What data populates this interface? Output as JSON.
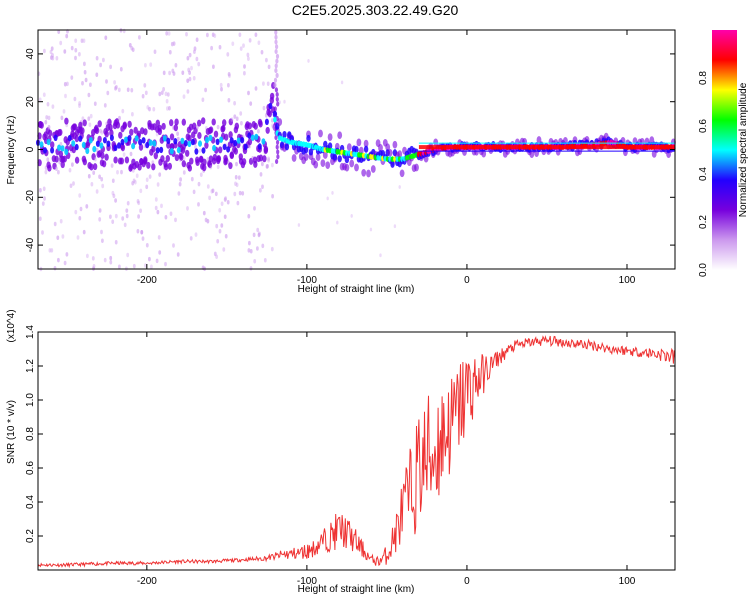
{
  "figure": {
    "title": "C2E5.2025.303.22.49.G20"
  },
  "chart_data": [
    {
      "type": "heatmap",
      "name": "spectrogram",
      "xlabel": "Height of straight line (km)",
      "ylabel": "Frequency (Hz)",
      "xlim": [
        -268,
        130
      ],
      "ylim": [
        -50,
        50
      ],
      "xticks": [
        -200,
        -100,
        0,
        100
      ],
      "yticks": [
        -40,
        -20,
        0,
        20,
        40
      ],
      "grid": false,
      "colorbar": {
        "label": "Normalized spectral amplitude",
        "range": [
          0,
          1
        ],
        "ticks": [
          "0.0",
          "0.2",
          "0.4",
          "0.6",
          "0.8"
        ],
        "colormap": [
          "#ffffff",
          "#cc99ee",
          "#7700dd",
          "#2200ff",
          "#00ffff",
          "#00ff00",
          "#ffff00",
          "#ff0000",
          "#ff00aa"
        ]
      },
      "ridge_frequency": {
        "height_km": [
          -268,
          -200,
          -140,
          -126,
          -122,
          -118,
          -110,
          -100,
          -90,
          -80,
          -70,
          -60,
          -50,
          -40,
          -30,
          -20,
          -10,
          0,
          20,
          60,
          80,
          90,
          100,
          130
        ],
        "frequency_hz": [
          2,
          2,
          2,
          5,
          20,
          5,
          3,
          2,
          0,
          -1,
          -2,
          -3,
          -4,
          -4,
          -2,
          0,
          1,
          1,
          1,
          1,
          2,
          3,
          1,
          1
        ]
      },
      "strong_band": {
        "from_km": -30,
        "to_km": 130,
        "frequency_hz": 1
      }
    },
    {
      "type": "line",
      "name": "snr",
      "xlabel": "Height of straight line (km)",
      "ylabel": "SNR (10 * v/v)",
      "scale_label": "(x10^4)",
      "xlim": [
        -268,
        130
      ],
      "ylim": [
        0,
        1.4
      ],
      "xticks": [
        -200,
        -100,
        0,
        100
      ],
      "yticks": [
        0.2,
        0.4,
        0.6,
        0.8,
        1.0,
        1.2,
        1.4
      ],
      "grid": false,
      "series": [
        {
          "color": "#ee3333",
          "x": [
            -268,
            -250,
            -220,
            -200,
            -180,
            -160,
            -140,
            -125,
            -115,
            -105,
            -100,
            -95,
            -90,
            -85,
            -80,
            -75,
            -70,
            -65,
            -60,
            -55,
            -50,
            -45,
            -40,
            -35,
            -30,
            -25,
            -20,
            -15,
            -10,
            -5,
            0,
            5,
            10,
            15,
            20,
            30,
            40,
            50,
            60,
            70,
            80,
            90,
            100,
            110,
            120,
            130
          ],
          "y": [
            0.03,
            0.03,
            0.04,
            0.04,
            0.05,
            0.05,
            0.06,
            0.07,
            0.09,
            0.1,
            0.11,
            0.13,
            0.17,
            0.2,
            0.24,
            0.22,
            0.17,
            0.12,
            0.06,
            0.05,
            0.09,
            0.2,
            0.35,
            0.45,
            0.6,
            0.65,
            0.7,
            0.8,
            0.85,
            0.95,
            1.05,
            1.1,
            1.15,
            1.2,
            1.25,
            1.32,
            1.34,
            1.35,
            1.34,
            1.33,
            1.32,
            1.3,
            1.29,
            1.28,
            1.27,
            1.25
          ],
          "noise_amplitude": [
            0.01,
            0.01,
            0.01,
            0.01,
            0.01,
            0.01,
            0.01,
            0.015,
            0.03,
            0.04,
            0.05,
            0.05,
            0.07,
            0.09,
            0.12,
            0.1,
            0.08,
            0.05,
            0.03,
            0.03,
            0.06,
            0.12,
            0.2,
            0.3,
            0.35,
            0.4,
            0.4,
            0.35,
            0.3,
            0.3,
            0.28,
            0.2,
            0.12,
            0.08,
            0.05,
            0.03,
            0.03,
            0.03,
            0.03,
            0.03,
            0.03,
            0.03,
            0.03,
            0.03,
            0.04,
            0.05
          ]
        }
      ]
    }
  ]
}
